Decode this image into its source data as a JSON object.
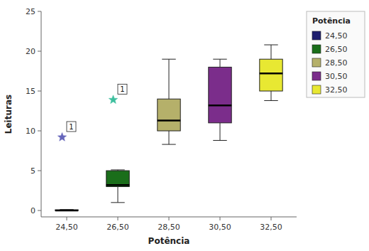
{
  "chart_data": {
    "type": "box",
    "title": "",
    "xlabel": "Potência",
    "ylabel": "Leituras",
    "ylim": [
      -0.8,
      25
    ],
    "yticks": [
      0,
      5,
      10,
      15,
      20,
      25
    ],
    "grid": false,
    "legend": "right",
    "legend_title": "Potência",
    "categories": [
      "24,50",
      "26,50",
      "28,50",
      "30,50",
      "32,50"
    ],
    "colors": [
      "#1f1f6e",
      "#1a6e1a",
      "#b5b06a",
      "#7b2d8b",
      "#e8e832"
    ],
    "boxes": [
      {
        "q1": 0.0,
        "median": 0.0,
        "q3": 0.08,
        "whislo": 0.0,
        "whishi": 0.12,
        "outliers": [
          9.2
        ],
        "outlier_labels": [
          "1"
        ],
        "outlier_colors": [
          "#6666bb"
        ]
      },
      {
        "q1": 3.0,
        "median": 3.2,
        "q3": 5.0,
        "whislo": 1.0,
        "whishi": 5.1,
        "outliers": [
          13.9
        ],
        "outlier_labels": [
          "1"
        ],
        "outlier_colors": [
          "#3dbf9e"
        ]
      },
      {
        "q1": 10.0,
        "median": 11.3,
        "q3": 14.0,
        "whislo": 8.3,
        "whishi": 19.0,
        "outliers": [],
        "outlier_labels": [],
        "outlier_colors": []
      },
      {
        "q1": 11.0,
        "median": 13.2,
        "q3": 18.0,
        "whislo": 8.8,
        "whishi": 19.0,
        "outliers": [],
        "outlier_labels": [],
        "outlier_colors": []
      },
      {
        "q1": 15.0,
        "median": 17.2,
        "q3": 19.0,
        "whislo": 13.8,
        "whishi": 20.8,
        "outliers": [],
        "outlier_labels": [],
        "outlier_colors": []
      }
    ]
  }
}
